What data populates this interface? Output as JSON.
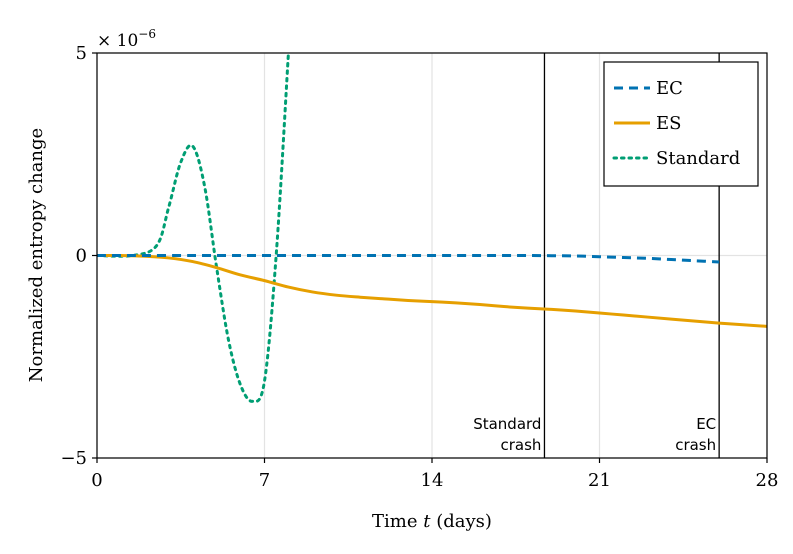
{
  "chart_data": {
    "type": "line",
    "title": "",
    "xlabel_prefix": "Time ",
    "xlabel_var": "t",
    "xlabel_suffix": " (days)",
    "ylabel": "Normalized entropy change",
    "y_scale_label": "× 10",
    "y_scale_exp": "−6",
    "xlim": [
      0,
      28
    ],
    "ylim": [
      -5,
      5
    ],
    "x_ticks": [
      0,
      7,
      14,
      21,
      28
    ],
    "x_tick_labels": [
      "0",
      "7",
      "14",
      "21",
      "28"
    ],
    "y_ticks": [
      -5,
      0,
      5
    ],
    "y_tick_labels": [
      "−5",
      "0",
      "5"
    ],
    "grid": true,
    "legend_position": "top-right",
    "series": [
      {
        "name": "EC",
        "color": "#0072B2",
        "style": "dashed",
        "x": [
          0,
          4,
          8,
          12,
          16,
          18,
          19,
          20,
          21,
          22,
          23,
          24,
          25,
          26
        ],
        "y": [
          0,
          0,
          0,
          0,
          0,
          0,
          -0.005,
          -0.01,
          -0.03,
          -0.05,
          -0.07,
          -0.1,
          -0.13,
          -0.16
        ]
      },
      {
        "name": "ES",
        "color": "#E69F00",
        "style": "solid",
        "x": [
          0,
          1,
          2,
          3,
          4,
          5,
          6,
          7,
          8,
          9,
          10,
          11,
          12,
          13,
          14,
          15,
          16,
          17,
          18,
          19,
          20,
          21,
          22,
          23,
          24,
          25,
          26,
          27,
          28
        ],
        "y": [
          0,
          0,
          -0.02,
          -0.06,
          -0.15,
          -0.3,
          -0.48,
          -0.62,
          -0.78,
          -0.9,
          -0.98,
          -1.03,
          -1.07,
          -1.11,
          -1.14,
          -1.17,
          -1.21,
          -1.26,
          -1.3,
          -1.33,
          -1.37,
          -1.42,
          -1.47,
          -1.52,
          -1.57,
          -1.62,
          -1.67,
          -1.71,
          -1.75
        ]
      },
      {
        "name": "Standard",
        "color": "#009E73",
        "style": "dotted",
        "x": [
          0,
          1.5,
          2.5,
          3.0,
          3.5,
          4.0,
          4.5,
          5.0,
          5.5,
          6.0,
          6.5,
          7.0,
          7.5,
          8.0
        ],
        "y": [
          0,
          0,
          0.25,
          1.2,
          2.3,
          2.7,
          1.7,
          -0.3,
          -2.1,
          -3.2,
          -3.6,
          -3.1,
          0.1,
          5.0
        ]
      }
    ],
    "annotations": [
      {
        "x": 18.7,
        "line1": "Standard",
        "line2": "crash"
      },
      {
        "x": 26.0,
        "line1": "EC",
        "line2": "crash"
      }
    ]
  }
}
